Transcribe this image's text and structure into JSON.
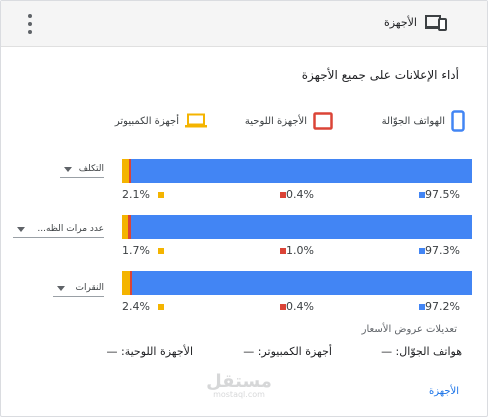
{
  "header": {
    "title": "الأجهزة"
  },
  "section_title": "أداء الإعلانات على جميع الأجهزة",
  "legend": {
    "mobile": "الهواتف الجوّالة",
    "tablet": "الأجهزة اللوحية",
    "computer": "أجهزة الكمبيوتر"
  },
  "colors": {
    "mobile": "#4285f4",
    "tablet": "#db4437",
    "computer": "#f4b400"
  },
  "rows": [
    {
      "metric": "التكلف",
      "mobile_pct": "97.5%",
      "tablet_pct": "0.4%",
      "computer_pct": "2.1%",
      "mobile": 97.5,
      "tablet": 0.4,
      "computer": 2.1
    },
    {
      "metric": "عدد مرات الظه...",
      "mobile_pct": "97.3%",
      "tablet_pct": "1.0%",
      "computer_pct": "1.7%",
      "mobile": 97.3,
      "tablet": 1.0,
      "computer": 1.7
    },
    {
      "metric": "النقرات",
      "mobile_pct": "97.2%",
      "tablet_pct": "0.4%",
      "computer_pct": "2.4%",
      "mobile": 97.2,
      "tablet": 0.4,
      "computer": 2.4
    }
  ],
  "bid_adjustments": {
    "label": "تعديلات عروض الأسعار",
    "mobile": "هواتف الجوّال: —",
    "computer": "أجهزة الكمبيوتر: —",
    "tablet": "الأجهزة اللوحية: —"
  },
  "footer_link": "الأجهزة",
  "watermark": {
    "main": "مستقل",
    "sub": "mostaql.com"
  }
}
